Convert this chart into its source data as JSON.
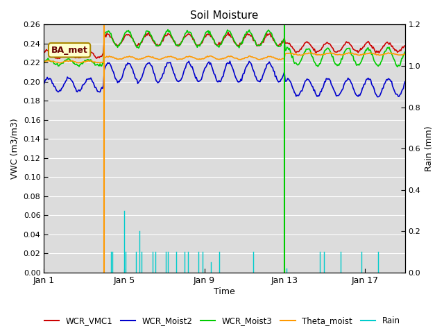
{
  "title": "Soil Moisture",
  "xlabel": "Time",
  "ylabel_left": "VWC (m3/m3)",
  "ylabel_right": "Rain (mm)",
  "ylim_left": [
    0.0,
    0.26
  ],
  "ylim_right": [
    0.0,
    1.2
  ],
  "yticks_left": [
    0.0,
    0.02,
    0.04,
    0.06,
    0.08,
    0.1,
    0.12,
    0.14,
    0.16,
    0.18,
    0.2,
    0.22,
    0.24,
    0.26
  ],
  "yticks_right_vals": [
    0.0,
    0.2,
    0.4,
    0.6,
    0.8,
    1.0,
    1.2
  ],
  "xtick_positions": [
    0,
    4,
    8,
    12,
    16
  ],
  "xtick_labels": [
    "Jan 1",
    "Jan 5",
    "Jan 9",
    "Jan 13",
    "Jan 17"
  ],
  "site_label": "BA_met",
  "plot_bg_color": "#dcdcdc",
  "fig_bg_color": "#ffffff",
  "colors": {
    "WCR_VMC1": "#cc0000",
    "WCR_Moist2": "#0000cc",
    "WCR_Moist3": "#00cc00",
    "Theta_moist": "#ff9900",
    "Rain": "#00cccc"
  },
  "n_days": 18,
  "hours_per_day": 24,
  "jan4_hour": 72,
  "jan13_hour": 288,
  "vline_orange_day": 3.0,
  "vline_green_day": 12.0,
  "rain_events_hours": [
    80,
    82,
    96,
    98,
    110,
    114,
    117,
    130,
    133,
    146,
    148,
    158,
    168,
    172,
    185,
    190,
    200,
    210,
    250,
    290,
    330,
    335,
    355,
    380,
    400
  ],
  "rain_events_vals": [
    0.1,
    0.1,
    0.3,
    0.1,
    0.1,
    0.2,
    0.1,
    0.1,
    0.1,
    0.1,
    0.1,
    0.1,
    0.1,
    0.1,
    0.1,
    0.1,
    0.05,
    0.1,
    0.1,
    0.02,
    0.1,
    0.1,
    0.1,
    0.1,
    0.1
  ],
  "rain_big_hour": 96,
  "rain_big_val": 0.3,
  "lw": 1.2
}
